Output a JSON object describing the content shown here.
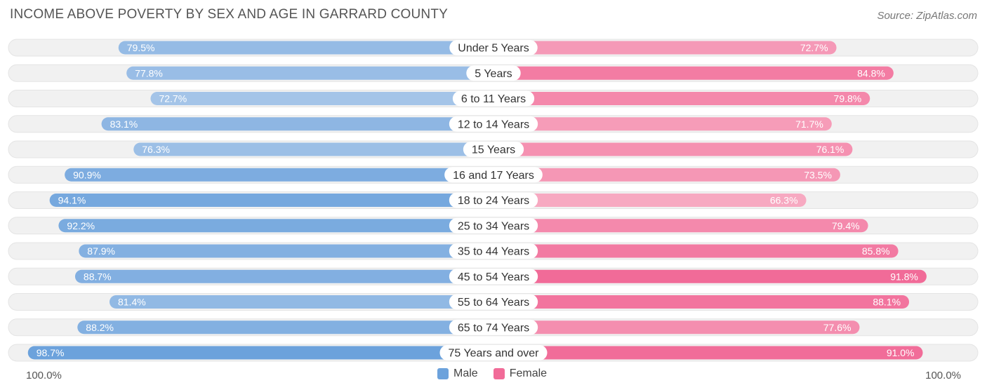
{
  "title": "INCOME ABOVE POVERTY BY SEX AND AGE IN GARRARD COUNTY",
  "source": "Source: ZipAtlas.com",
  "colors": {
    "male_light": "#a4c4e8",
    "male_dark": "#6ca2dc",
    "female_light": "#f7a9c1",
    "female_dark": "#f16b98",
    "track": "#f1f1f1"
  },
  "axis": {
    "left_label": "100.0%",
    "right_label": "100.0%"
  },
  "legend": {
    "male": "Male",
    "female": "Female"
  },
  "chart_data": {
    "type": "bar",
    "orientation": "horizontal-diverging",
    "categories": [
      "Under 5 Years",
      "5 Years",
      "6 to 11 Years",
      "12 to 14 Years",
      "15 Years",
      "16 and 17 Years",
      "18 to 24 Years",
      "25 to 34 Years",
      "35 to 44 Years",
      "45 to 54 Years",
      "55 to 64 Years",
      "65 to 74 Years",
      "75 Years and over"
    ],
    "series": [
      {
        "name": "Male",
        "values": [
          79.5,
          77.8,
          72.7,
          83.1,
          76.3,
          90.9,
          94.1,
          92.2,
          87.9,
          88.7,
          81.4,
          88.2,
          98.7
        ],
        "labels": [
          "79.5%",
          "77.8%",
          "72.7%",
          "83.1%",
          "76.3%",
          "90.9%",
          "94.1%",
          "92.2%",
          "87.9%",
          "88.7%",
          "81.4%",
          "88.2%",
          "98.7%"
        ]
      },
      {
        "name": "Female",
        "values": [
          72.7,
          84.8,
          79.8,
          71.7,
          76.1,
          73.5,
          66.3,
          79.4,
          85.8,
          91.8,
          88.1,
          77.6,
          91.0
        ],
        "labels": [
          "72.7%",
          "84.8%",
          "79.8%",
          "71.7%",
          "76.1%",
          "73.5%",
          "66.3%",
          "79.4%",
          "85.8%",
          "91.8%",
          "88.1%",
          "77.6%",
          "91.0%"
        ]
      }
    ],
    "xlim": [
      0,
      100
    ],
    "legend_position": "bottom-center"
  }
}
